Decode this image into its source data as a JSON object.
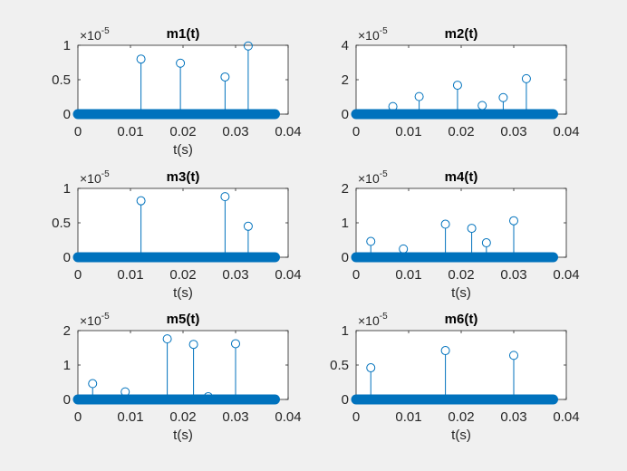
{
  "figure": {
    "background": "#f0f0f0",
    "series_color": "#0072bd"
  },
  "chart_data": [
    {
      "type": "stem",
      "title": "m1(t)",
      "xlabel": "t(s)",
      "ylabel": "",
      "exponent_base": "×10",
      "exponent_power": "-5",
      "xlim": [
        0,
        0.04
      ],
      "ylim": [
        0,
        1
      ],
      "xticks": [
        0,
        0.01,
        0.02,
        0.03,
        0.04
      ],
      "xtick_labels": [
        "0",
        "0.01",
        "0.02",
        "0.03",
        "0.04"
      ],
      "yticks": [
        0,
        0.5,
        1
      ],
      "ytick_labels": [
        "0",
        "0.5",
        "1"
      ],
      "x_end": 0.0375,
      "points": [
        {
          "x": 0.012,
          "y": 0.8
        },
        {
          "x": 0.0195,
          "y": 0.74
        },
        {
          "x": 0.028,
          "y": 0.54
        },
        {
          "x": 0.0324,
          "y": 0.99
        }
      ]
    },
    {
      "type": "stem",
      "title": "m2(t)",
      "xlabel": "",
      "ylabel": "",
      "exponent_base": "×10",
      "exponent_power": "-5",
      "xlim": [
        0,
        0.04
      ],
      "ylim": [
        0,
        4
      ],
      "xticks": [
        0,
        0.01,
        0.02,
        0.03,
        0.04
      ],
      "xtick_labels": [
        "0",
        "0.01",
        "0.02",
        "0.03",
        "0.04"
      ],
      "yticks": [
        0,
        2,
        4
      ],
      "ytick_labels": [
        "0",
        "2",
        "4"
      ],
      "x_end": 0.0375,
      "points": [
        {
          "x": 0.007,
          "y": 0.44
        },
        {
          "x": 0.012,
          "y": 1.02
        },
        {
          "x": 0.0193,
          "y": 1.68
        },
        {
          "x": 0.024,
          "y": 0.5
        },
        {
          "x": 0.028,
          "y": 0.96
        },
        {
          "x": 0.0324,
          "y": 2.06
        }
      ]
    },
    {
      "type": "stem",
      "title": "m3(t)",
      "xlabel": "t(s)",
      "ylabel": "",
      "exponent_base": "×10",
      "exponent_power": "-5",
      "xlim": [
        0,
        0.04
      ],
      "ylim": [
        0,
        1
      ],
      "xticks": [
        0,
        0.01,
        0.02,
        0.03,
        0.04
      ],
      "xtick_labels": [
        "0",
        "0.01",
        "0.02",
        "0.03",
        "0.04"
      ],
      "yticks": [
        0,
        0.5,
        1
      ],
      "ytick_labels": [
        "0",
        "0.5",
        "1"
      ],
      "x_end": 0.0375,
      "points": [
        {
          "x": 0.012,
          "y": 0.82
        },
        {
          "x": 0.028,
          "y": 0.88
        },
        {
          "x": 0.0324,
          "y": 0.45
        }
      ]
    },
    {
      "type": "stem",
      "title": "m4(t)",
      "xlabel": "t(s)",
      "ylabel": "",
      "exponent_base": "×10",
      "exponent_power": "-5",
      "xlim": [
        0,
        0.04
      ],
      "ylim": [
        0,
        2
      ],
      "xticks": [
        0,
        0.01,
        0.02,
        0.03,
        0.04
      ],
      "xtick_labels": [
        "0",
        "0.01",
        "0.02",
        "0.03",
        "0.04"
      ],
      "yticks": [
        0,
        1,
        2
      ],
      "ytick_labels": [
        "0",
        "1",
        "2"
      ],
      "x_end": 0.0375,
      "points": [
        {
          "x": 0.0028,
          "y": 0.46
        },
        {
          "x": 0.009,
          "y": 0.24
        },
        {
          "x": 0.017,
          "y": 0.96
        },
        {
          "x": 0.022,
          "y": 0.84
        },
        {
          "x": 0.0248,
          "y": 0.42
        },
        {
          "x": 0.03,
          "y": 1.06
        }
      ]
    },
    {
      "type": "stem",
      "title": "m5(t)",
      "xlabel": "t(s)",
      "ylabel": "",
      "exponent_base": "×10",
      "exponent_power": "-5",
      "xlim": [
        0,
        0.04
      ],
      "ylim": [
        0,
        2
      ],
      "xticks": [
        0,
        0.01,
        0.02,
        0.03,
        0.04
      ],
      "xtick_labels": [
        "0",
        "0.01",
        "0.02",
        "0.03",
        "0.04"
      ],
      "yticks": [
        0,
        1,
        2
      ],
      "ytick_labels": [
        "0",
        "1",
        "2"
      ],
      "x_end": 0.0375,
      "points": [
        {
          "x": 0.0028,
          "y": 0.46
        },
        {
          "x": 0.009,
          "y": 0.22
        },
        {
          "x": 0.017,
          "y": 1.76
        },
        {
          "x": 0.022,
          "y": 1.6
        },
        {
          "x": 0.0248,
          "y": 0.08
        },
        {
          "x": 0.03,
          "y": 1.62
        }
      ]
    },
    {
      "type": "stem",
      "title": "m6(t)",
      "xlabel": "t(s)",
      "ylabel": "",
      "exponent_base": "×10",
      "exponent_power": "-5",
      "xlim": [
        0,
        0.04
      ],
      "ylim": [
        0,
        1
      ],
      "xticks": [
        0,
        0.01,
        0.02,
        0.03,
        0.04
      ],
      "xtick_labels": [
        "0",
        "0.01",
        "0.02",
        "0.03",
        "0.04"
      ],
      "yticks": [
        0,
        0.5,
        1
      ],
      "ytick_labels": [
        "0",
        "0.5",
        "1"
      ],
      "x_end": 0.0375,
      "points": [
        {
          "x": 0.0028,
          "y": 0.46
        },
        {
          "x": 0.017,
          "y": 0.71
        },
        {
          "x": 0.03,
          "y": 0.64
        }
      ]
    }
  ]
}
